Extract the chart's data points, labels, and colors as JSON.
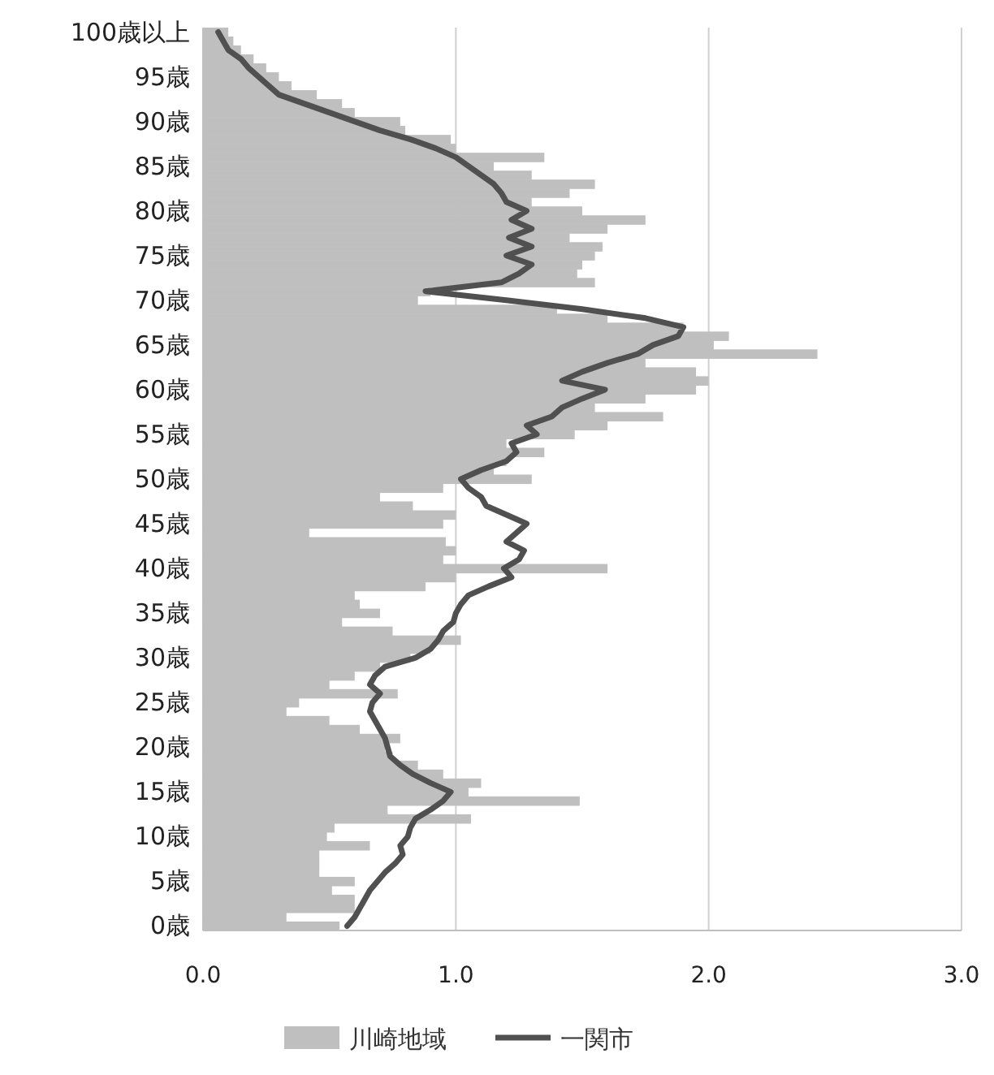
{
  "chart_data": {
    "type": "bar",
    "orientation": "horizontal",
    "categories": [
      "100歳以上",
      null,
      null,
      null,
      null,
      "95歳",
      null,
      null,
      null,
      null,
      "90歳",
      null,
      null,
      null,
      null,
      "85歳",
      null,
      null,
      null,
      null,
      "80歳",
      null,
      null,
      null,
      null,
      "75歳",
      null,
      null,
      null,
      null,
      "70歳",
      null,
      null,
      null,
      null,
      "65歳",
      null,
      null,
      null,
      null,
      "60歳",
      null,
      null,
      null,
      null,
      "55歳",
      null,
      null,
      null,
      null,
      "50歳",
      null,
      null,
      null,
      null,
      "45歳",
      null,
      null,
      null,
      null,
      "40歳",
      null,
      null,
      null,
      null,
      "35歳",
      null,
      null,
      null,
      null,
      "30歳",
      null,
      null,
      null,
      null,
      "25歳",
      null,
      null,
      null,
      null,
      "20歳",
      null,
      null,
      null,
      null,
      "15歳",
      null,
      null,
      null,
      null,
      "10歳",
      null,
      null,
      null,
      null,
      "5歳",
      null,
      null,
      null,
      null,
      "0歳"
    ],
    "series": [
      {
        "name": "川崎地域",
        "color": "#bfbfbf",
        "values": [
          0.1,
          0.12,
          0.15,
          0.2,
          0.25,
          0.3,
          0.35,
          0.45,
          0.55,
          0.6,
          0.78,
          0.8,
          0.98,
          1.0,
          1.35,
          1.15,
          1.3,
          1.55,
          1.45,
          1.3,
          1.5,
          1.75,
          1.6,
          1.45,
          1.58,
          1.55,
          1.5,
          1.48,
          1.55,
          0.9,
          0.85,
          1.4,
          1.6,
          1.9,
          2.08,
          2.02,
          2.43,
          1.75,
          1.95,
          2.0,
          1.95,
          1.75,
          1.55,
          1.82,
          1.6,
          1.47,
          1.2,
          1.35,
          1.2,
          1.15,
          1.3,
          0.95,
          0.7,
          0.83,
          1.0,
          0.95,
          0.42,
          0.96,
          1.0,
          0.95,
          1.6,
          1.0,
          0.88,
          0.6,
          0.62,
          0.7,
          0.55,
          0.75,
          1.02,
          0.9,
          0.82,
          0.7,
          0.6,
          0.5,
          0.77,
          0.38,
          0.33,
          0.5,
          0.62,
          0.78,
          0.72,
          0.75,
          0.85,
          0.95,
          1.1,
          1.05,
          1.49,
          0.73,
          1.06,
          0.52,
          0.49,
          0.66,
          0.46,
          0.46,
          0.46,
          0.6,
          0.51,
          0.6,
          0.6,
          0.33,
          0.54
        ]
      },
      {
        "name": "一関市",
        "type": "line",
        "color": "#505050",
        "values": [
          0.06,
          0.08,
          0.1,
          0.15,
          0.18,
          0.22,
          0.26,
          0.3,
          0.4,
          0.5,
          0.6,
          0.7,
          0.82,
          0.92,
          1.0,
          1.05,
          1.1,
          1.15,
          1.18,
          1.2,
          1.28,
          1.22,
          1.3,
          1.21,
          1.3,
          1.2,
          1.3,
          1.25,
          1.18,
          0.88,
          1.2,
          1.5,
          1.75,
          1.9,
          1.88,
          1.78,
          1.72,
          1.6,
          1.5,
          1.42,
          1.59,
          1.5,
          1.42,
          1.38,
          1.28,
          1.32,
          1.22,
          1.24,
          1.2,
          1.1,
          1.02,
          1.05,
          1.1,
          1.12,
          1.2,
          1.28,
          1.24,
          1.2,
          1.27,
          1.25,
          1.19,
          1.22,
          1.13,
          1.05,
          1.02,
          1.0,
          0.99,
          0.95,
          0.93,
          0.9,
          0.84,
          0.72,
          0.68,
          0.66,
          0.7,
          0.67,
          0.66,
          0.68,
          0.7,
          0.72,
          0.73,
          0.74,
          0.78,
          0.83,
          0.9,
          0.98,
          0.95,
          0.9,
          0.84,
          0.82,
          0.81,
          0.78,
          0.79,
          0.76,
          0.72,
          0.69,
          0.66,
          0.64,
          0.62,
          0.6,
          0.57
        ]
      }
    ],
    "xlim": [
      0,
      3
    ],
    "xticks": [
      {
        "value": 0,
        "label": "0.0"
      },
      {
        "value": 1,
        "label": "1.0"
      },
      {
        "value": 2,
        "label": "2.0"
      },
      {
        "value": 3,
        "label": "3.0"
      }
    ],
    "grid": "x",
    "legend": "bottom"
  }
}
